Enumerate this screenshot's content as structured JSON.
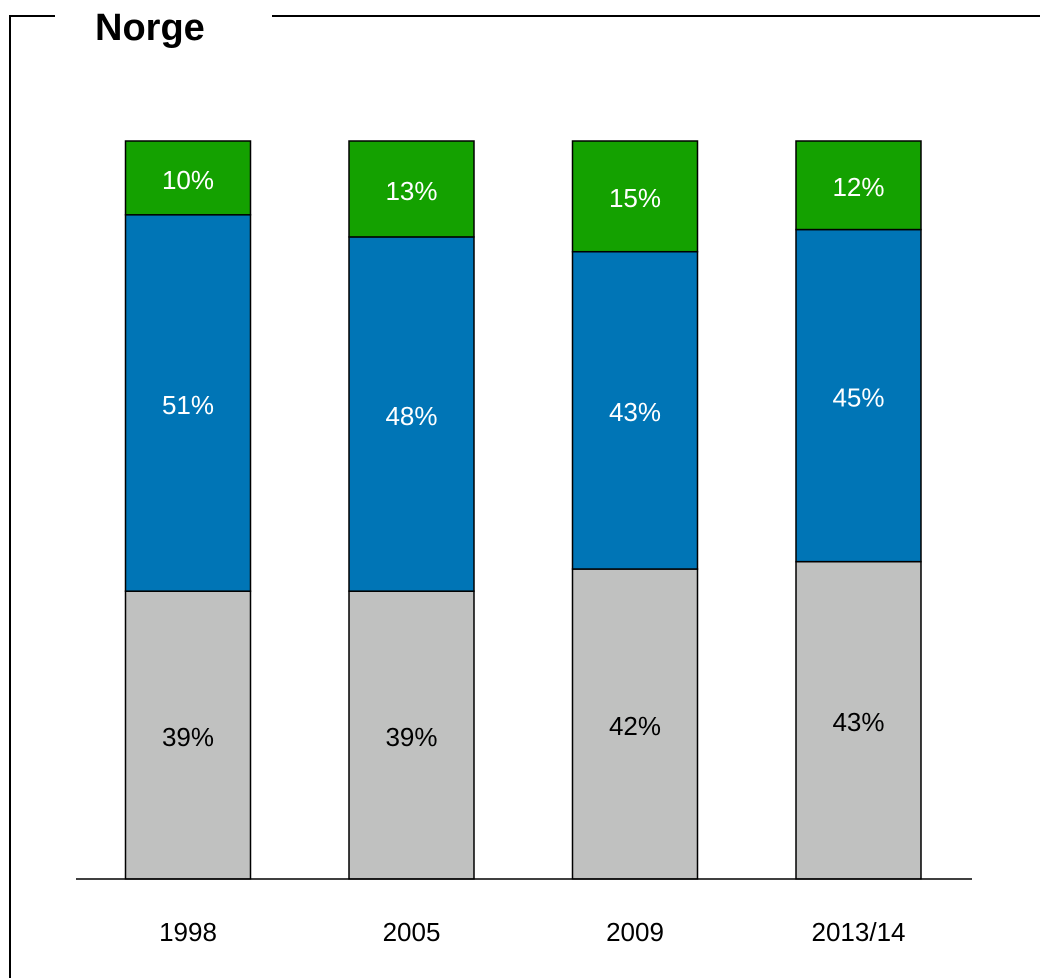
{
  "chart_data": {
    "type": "stacked_bar",
    "title": "Norge",
    "categories": [
      "1998",
      "2005",
      "2009",
      "2013/14"
    ],
    "series": [
      {
        "color": "#c0c1c0",
        "label_color": "#000000",
        "values": [
          39,
          39,
          42,
          43
        ],
        "value_labels": [
          "39%",
          "39%",
          "42%",
          "43%"
        ]
      },
      {
        "color": "#0075b6",
        "label_color": "#ffffff",
        "values": [
          51,
          48,
          43,
          45
        ],
        "value_labels": [
          "51%",
          "48%",
          "43%",
          "45%"
        ]
      },
      {
        "color": "#14a100",
        "label_color": "#ffffff",
        "values": [
          10,
          13,
          15,
          12
        ],
        "value_labels": [
          "10%",
          "13%",
          "15%",
          "12%"
        ]
      }
    ],
    "ylim": [
      0,
      100
    ]
  }
}
